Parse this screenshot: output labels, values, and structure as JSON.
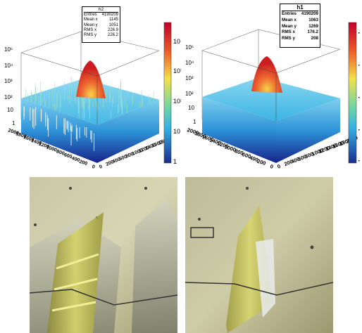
{
  "chart_data": [
    {
      "type": "lego",
      "title": "",
      "stats_box": {
        "name": "h2",
        "entries_label": "Entries",
        "entries": "4190209",
        "mean_x_label": "Mean x",
        "mean_x": "1145",
        "mean_y_label": "Mean y",
        "mean_y": "1051",
        "rms_x_label": "RMS x",
        "rms_x": "226.9",
        "rms_y_label": "RMS y",
        "rms_y": "226.2"
      },
      "z_ticks": [
        "10⁵",
        "10⁴",
        "10³",
        "10²",
        "10",
        "1"
      ],
      "colorbar_ticks": [
        "10⁴",
        "10³",
        "10²",
        "10",
        "1"
      ],
      "y_ticks": [
        "2000",
        "1800",
        "1600",
        "1400",
        "1200",
        "1000",
        "800",
        "600",
        "400",
        "200",
        "0"
      ],
      "x_ticks": [
        "0",
        "200",
        "400",
        "600",
        "800",
        "1000",
        "1200",
        "1400",
        "1600",
        "1800"
      ],
      "zscale": "log",
      "peak_x": 1145,
      "peak_y": 1051
    },
    {
      "type": "lego",
      "title": "",
      "stats_box": {
        "name": "h1",
        "entries_label": "Entries",
        "entries": "4190209",
        "mean_x_label": "Mean x",
        "mean_x": "1063",
        "mean_y_label": "Mean y",
        "mean_y": "1269",
        "rms_x_label": "RMS x",
        "rms_x": "176.2",
        "rms_y_label": "RMS y",
        "rms_y": "208"
      },
      "z_ticks": [
        "10⁵",
        "10⁴",
        "10³",
        "10²",
        "10",
        "1"
      ],
      "y_ticks": [
        "2000",
        "1800",
        "1600",
        "1400",
        "1200",
        "1000",
        "800",
        "600",
        "400",
        "200",
        "0"
      ],
      "x_ticks": [
        "0",
        "200",
        "400",
        "600",
        "800",
        "1000",
        "1200",
        "1400",
        "1600",
        "1800",
        "2000"
      ],
      "zscale": "log",
      "peak_x": 1063,
      "peak_y": 1269
    }
  ],
  "colors": {
    "peak": "#d62020",
    "mid": "#f2c23a",
    "low": "#3aa8e0",
    "base": "#2030a0"
  }
}
